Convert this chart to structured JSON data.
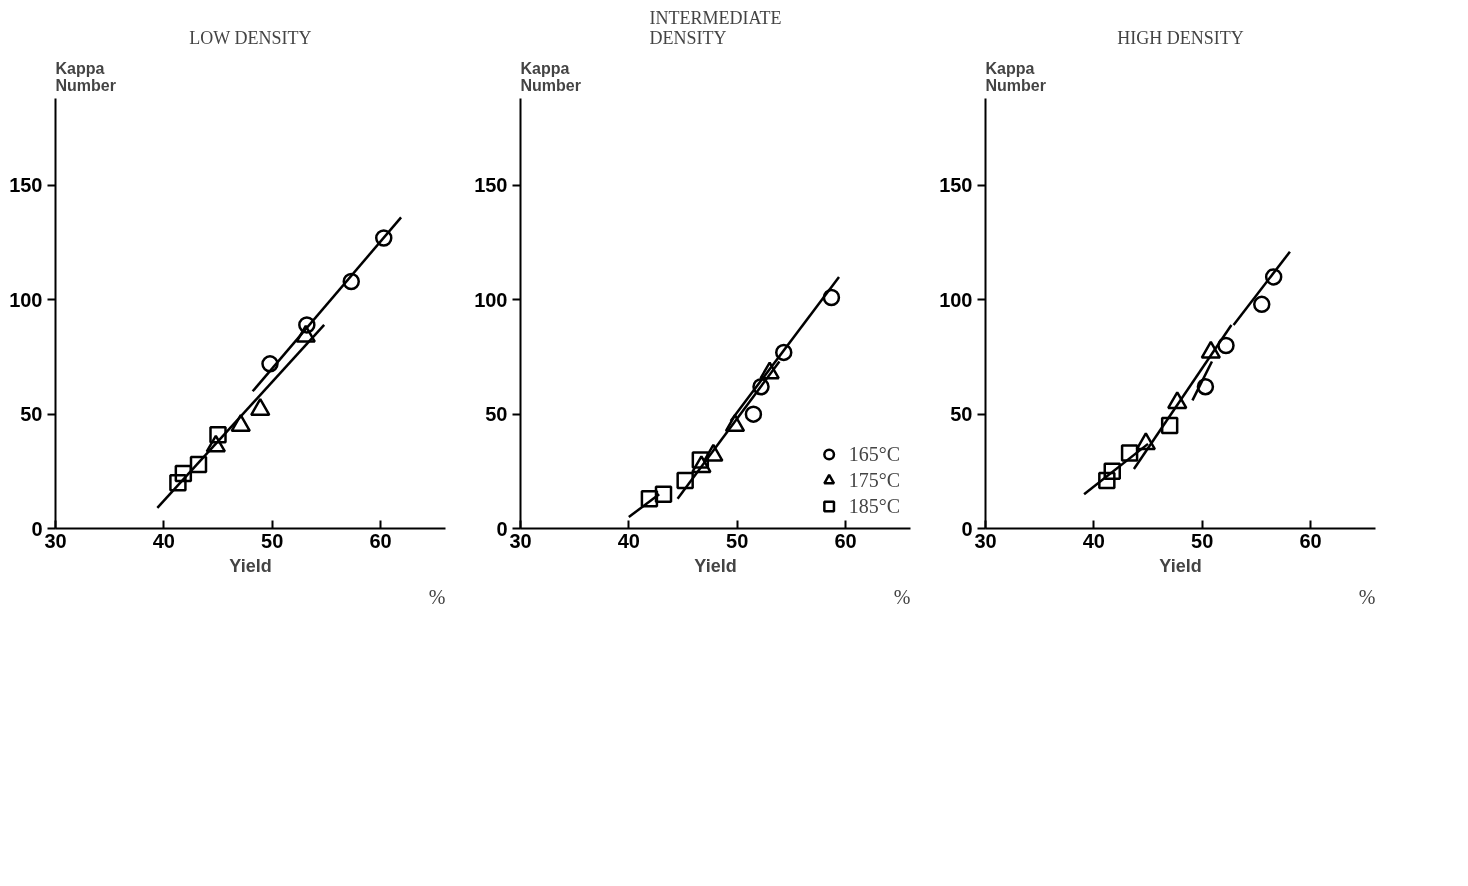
{
  "chart_data": [
    {
      "type": "scatter",
      "title": "LOW DENSITY",
      "xlabel": "Yield",
      "ylabel": "Kappa\nNumber",
      "annotations": [
        "%"
      ],
      "xlim": [
        30,
        66
      ],
      "ylim": [
        0,
        188
      ],
      "xticks": [
        30,
        40,
        50,
        60
      ],
      "yticks": [
        0,
        50,
        100,
        150
      ],
      "grid": false,
      "legend": false,
      "series": [
        {
          "marker": "circle",
          "color": "#000000",
          "x": [
            60.3,
            57.3,
            53.2,
            49.8
          ],
          "values": [
            127,
            108,
            89,
            72
          ]
        },
        {
          "marker": "triangle",
          "color": "#000000",
          "x": [
            53.1,
            48.9,
            47.1,
            44.8
          ],
          "values": [
            84,
            52,
            45,
            36
          ]
        },
        {
          "marker": "square",
          "color": "#000000",
          "x": [
            45.0,
            43.2,
            41.8,
            41.3
          ],
          "values": [
            41,
            28,
            24,
            20
          ]
        },
        {
          "type": "line",
          "color": "#000000",
          "x": [
            48.2,
            61.9
          ],
          "values": [
            60,
            136
          ]
        },
        {
          "type": "line",
          "color": "#000000",
          "x": [
            39.4,
            54.8
          ],
          "values": [
            9,
            89
          ]
        }
      ]
    },
    {
      "type": "scatter",
      "title": "INTERMEDIATE\nDENSITY",
      "xlabel": "Yield",
      "ylabel": "Kappa\nNumber",
      "annotations": [
        "%"
      ],
      "xlim": [
        30,
        66
      ],
      "ylim": [
        0,
        188
      ],
      "xticks": [
        30,
        40,
        50,
        60
      ],
      "yticks": [
        0,
        50,
        100,
        150
      ],
      "grid": false,
      "legend": "bottom right",
      "series": [
        {
          "name": "165°C",
          "marker": "circle",
          "color": "#000000",
          "x": [
            58.7,
            54.3,
            52.2,
            51.5
          ],
          "values": [
            101,
            77,
            62,
            50
          ]
        },
        {
          "name": "175°C",
          "marker": "triangle",
          "color": "#000000",
          "x": [
            53.0,
            49.8,
            47.8,
            46.7
          ],
          "values": [
            68,
            45,
            32,
            27
          ]
        },
        {
          "name": "185°C",
          "marker": "square",
          "color": "#000000",
          "x": [
            46.6,
            45.2,
            43.2,
            41.9
          ],
          "values": [
            30,
            21,
            15,
            13
          ]
        },
        {
          "type": "line",
          "color": "#000000",
          "x": [
            49.4,
            59.4
          ],
          "values": [
            47,
            110
          ]
        },
        {
          "type": "line",
          "color": "#000000",
          "x": [
            44.5,
            53.9
          ],
          "values": [
            13,
            73
          ]
        },
        {
          "type": "line",
          "color": "#000000",
          "x": [
            40.0,
            42.8
          ],
          "values": [
            5,
            15
          ]
        }
      ]
    },
    {
      "type": "scatter",
      "title": "HIGH DENSITY",
      "xlabel": "Yield",
      "ylabel": "Kappa\nNumber",
      "annotations": [
        "%"
      ],
      "xlim": [
        30,
        66
      ],
      "ylim": [
        0,
        188
      ],
      "xticks": [
        30,
        40,
        50,
        60
      ],
      "yticks": [
        0,
        50,
        100,
        150
      ],
      "grid": false,
      "legend": false,
      "series": [
        {
          "marker": "circle",
          "color": "#000000",
          "x": [
            56.6,
            55.5,
            52.2,
            50.3
          ],
          "values": [
            110,
            98,
            80,
            62
          ]
        },
        {
          "marker": "triangle",
          "color": "#000000",
          "x": [
            50.8,
            47.7,
            44.8
          ],
          "values": [
            77,
            55,
            37
          ]
        },
        {
          "marker": "square",
          "color": "#000000",
          "x": [
            47.0,
            43.3,
            41.7,
            41.2
          ],
          "values": [
            45,
            33,
            25,
            21
          ]
        },
        {
          "type": "line",
          "color": "#000000",
          "x": [
            52.9,
            58.1
          ],
          "values": [
            89,
            121
          ]
        },
        {
          "type": "line",
          "color": "#000000",
          "x": [
            49.1,
            50.9
          ],
          "values": [
            56,
            73
          ]
        },
        {
          "type": "line",
          "color": "#000000",
          "x": [
            43.7,
            52.7
          ],
          "values": [
            26,
            89
          ]
        },
        {
          "type": "line",
          "color": "#000000",
          "x": [
            39.1,
            45.0
          ],
          "values": [
            15,
            37
          ]
        }
      ]
    }
  ]
}
